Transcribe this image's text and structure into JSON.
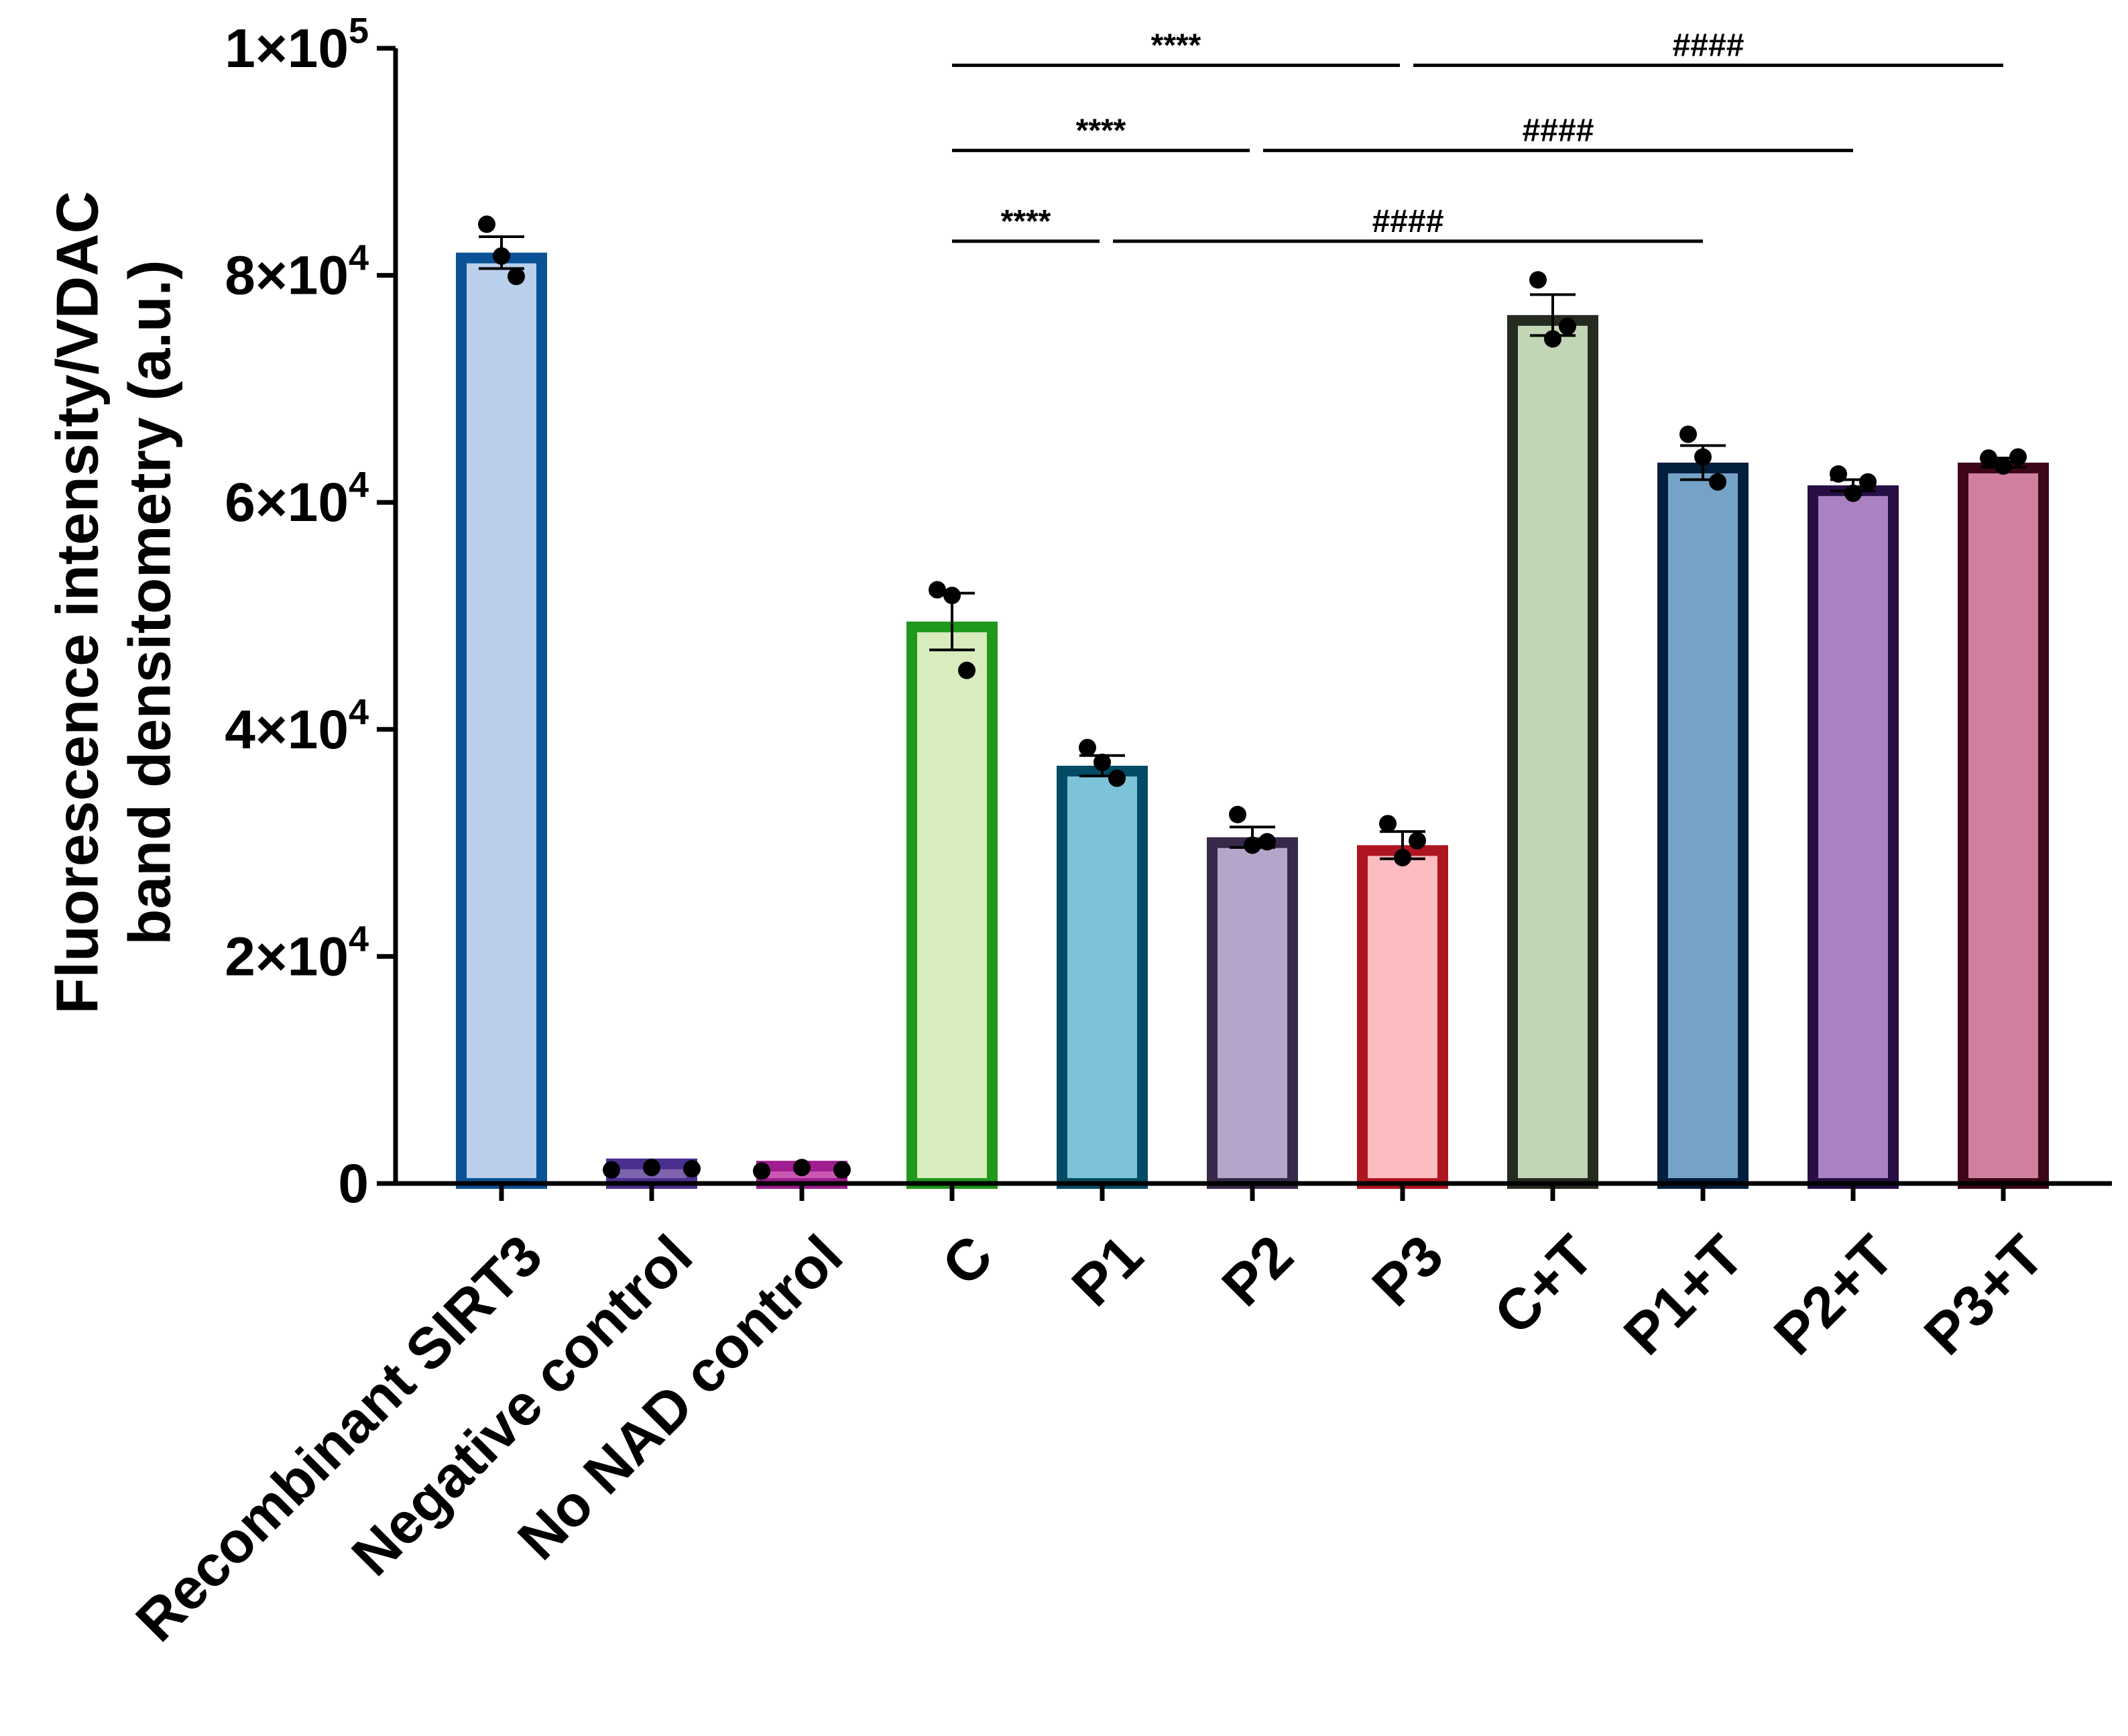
{
  "chart_data": {
    "type": "bar",
    "title": "",
    "xlabel": "",
    "ylabel_lines": [
      "Fluorescence intensity/VDAC",
      "band densitometry (a.u.)"
    ],
    "ylim": [
      0,
      100000
    ],
    "yticks": [
      {
        "value": 0,
        "mantissa": "0",
        "exponent": ""
      },
      {
        "value": 20000,
        "mantissa": "2×10",
        "exponent": "4"
      },
      {
        "value": 40000,
        "mantissa": "4×10",
        "exponent": "4"
      },
      {
        "value": 60000,
        "mantissa": "6×10",
        "exponent": "4"
      },
      {
        "value": 80000,
        "mantissa": "8×10",
        "exponent": "4"
      },
      {
        "value": 100000,
        "mantissa": "1×10",
        "exponent": "5"
      }
    ],
    "categories": [
      "Recombinant SIRT3",
      "Negative control",
      "No NAD control",
      "C",
      "P1",
      "P2",
      "P3",
      "C+T",
      "P1+T",
      "P2+T",
      "P3+T"
    ],
    "values": [
      82000,
      2200,
      2000,
      49500,
      36800,
      30500,
      29800,
      76500,
      63500,
      61500,
      63500
    ],
    "errors": [
      1400,
      0,
      0,
      2500,
      900,
      900,
      1200,
      1800,
      1500,
      500,
      400
    ],
    "points": [
      [
        84500,
        81700,
        79900
      ],
      [
        1200,
        1400,
        1300
      ],
      [
        1100,
        1400,
        1200
      ],
      [
        52300,
        51800,
        45200
      ],
      [
        38400,
        37100,
        35700
      ],
      [
        32500,
        29800,
        30100
      ],
      [
        31700,
        28700,
        30200
      ],
      [
        79600,
        74400,
        75500
      ],
      [
        66000,
        64000,
        61800
      ],
      [
        62500,
        60800,
        61800
      ],
      [
        63900,
        63200,
        64000
      ]
    ],
    "fill_colors": [
      "#b9cfec",
      "#7d62ad",
      "#c958b2",
      "#d9ecbd",
      "#7cc3d9",
      "#b4a6cb",
      "#fdbcc1",
      "#c1d6b4",
      "#75a3c8",
      "#aa82c4",
      "#d17f9f"
    ],
    "edge_colors": [
      "#0a5296",
      "#4b2f8f",
      "#a01d8f",
      "#1f981b",
      "#024b64",
      "#382849",
      "#af1520",
      "#262b20",
      "#031f3e",
      "#270e44",
      "#3d0618"
    ],
    "comparisons": [
      {
        "from": 3,
        "to": 4,
        "label": "****",
        "y": 83000
      },
      {
        "from": 3,
        "to": 5,
        "label": "****",
        "y": 91000
      },
      {
        "from": 3,
        "to": 6,
        "label": "****",
        "y": 98500
      },
      {
        "from": 4,
        "to": 8,
        "label": "####",
        "y": 83000
      },
      {
        "from": 5,
        "to": 9,
        "label": "####",
        "y": 91000
      },
      {
        "from": 6,
        "to": 10,
        "label": "####",
        "y": 98500
      }
    ]
  }
}
